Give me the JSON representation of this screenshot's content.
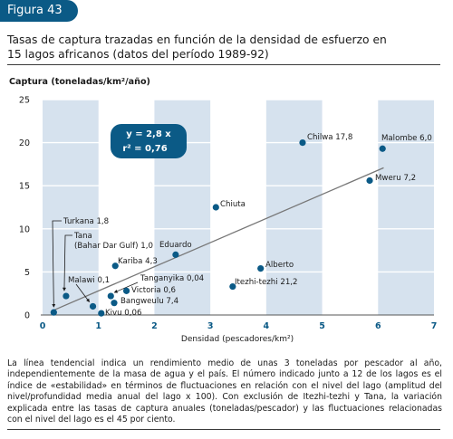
{
  "figure_label": "Figura 43",
  "title_line1": "Tasas de captura trazadas en función de la densidad de esfuerzo en",
  "title_line2": "15 lagos africanos (datos del período 1989-92)",
  "caption": "La línea tendencial indica un rendimiento medio de unas 3 toneladas por pescador al año, independientemente de la masa de agua y el país. El número indicado junto a 12 de los lagos es el índice de «estabilidad» en términos de fluctuaciones en relación con el nivel del lago (amplitud del nivel/profundidad media anual del lago x 100). Con exclusión de Itezhi-tezhi y Tana, la variación explicada entre las tasas de captura anuales (toneladas/pescador) y las fluctuaciones relacionadas con el nivel del lago es el 45 por ciento.",
  "colors": {
    "header": "#0b5a86",
    "point": "#0b5a86",
    "band": "#d6e2ee",
    "trend": "#777777",
    "equation_box": "#0b5a86"
  },
  "chart_data": {
    "type": "scatter",
    "ylabel": "Captura (toneladas/km²/año)",
    "xlabel": "Densidad (pescadores/km²)",
    "xlim": [
      0,
      7
    ],
    "ylim": [
      0,
      25
    ],
    "x_ticks": [
      "0",
      "1",
      "2",
      "3",
      "4",
      "5",
      "6",
      "7"
    ],
    "y_ticks": [
      "0",
      "5",
      "10",
      "15",
      "20",
      "25"
    ],
    "equation_line1": "y = 2,8 x",
    "equation_line2": "r² = 0,76",
    "trendline": {
      "slope": 2.8,
      "x_range": [
        0.2,
        6.1
      ]
    },
    "points": [
      {
        "label": "Turkana 1,8",
        "x": 0.2,
        "y": 0.3
      },
      {
        "label": "Tana (Bahar Dar Gulf) 1,0",
        "x": 0.42,
        "y": 2.2
      },
      {
        "label": "Malawi 0,1",
        "x": 0.9,
        "y": 1.0
      },
      {
        "label": "Kivu 0,06",
        "x": 1.05,
        "y": 0.2
      },
      {
        "label": "Bangweulu 7,4",
        "x": 1.28,
        "y": 1.4
      },
      {
        "label": "Victoria 0,6",
        "x": 1.22,
        "y": 2.2
      },
      {
        "label": "Tanganyika 0,04",
        "x": 1.5,
        "y": 2.8
      },
      {
        "label": "Kariba 4,3",
        "x": 1.3,
        "y": 5.7
      },
      {
        "label": "Eduardo",
        "x": 2.38,
        "y": 7.0
      },
      {
        "label": "Chiuta",
        "x": 3.1,
        "y": 12.5
      },
      {
        "label": "Itezhi-tezhi 21,2",
        "x": 3.4,
        "y": 3.3
      },
      {
        "label": "Alberto",
        "x": 3.9,
        "y": 5.4
      },
      {
        "label": "Chilwa 17,8",
        "x": 4.65,
        "y": 20.0
      },
      {
        "label": "Mweru 7,2",
        "x": 5.85,
        "y": 15.6
      },
      {
        "label": "Malombe 6,0",
        "x": 6.08,
        "y": 19.3
      }
    ]
  }
}
